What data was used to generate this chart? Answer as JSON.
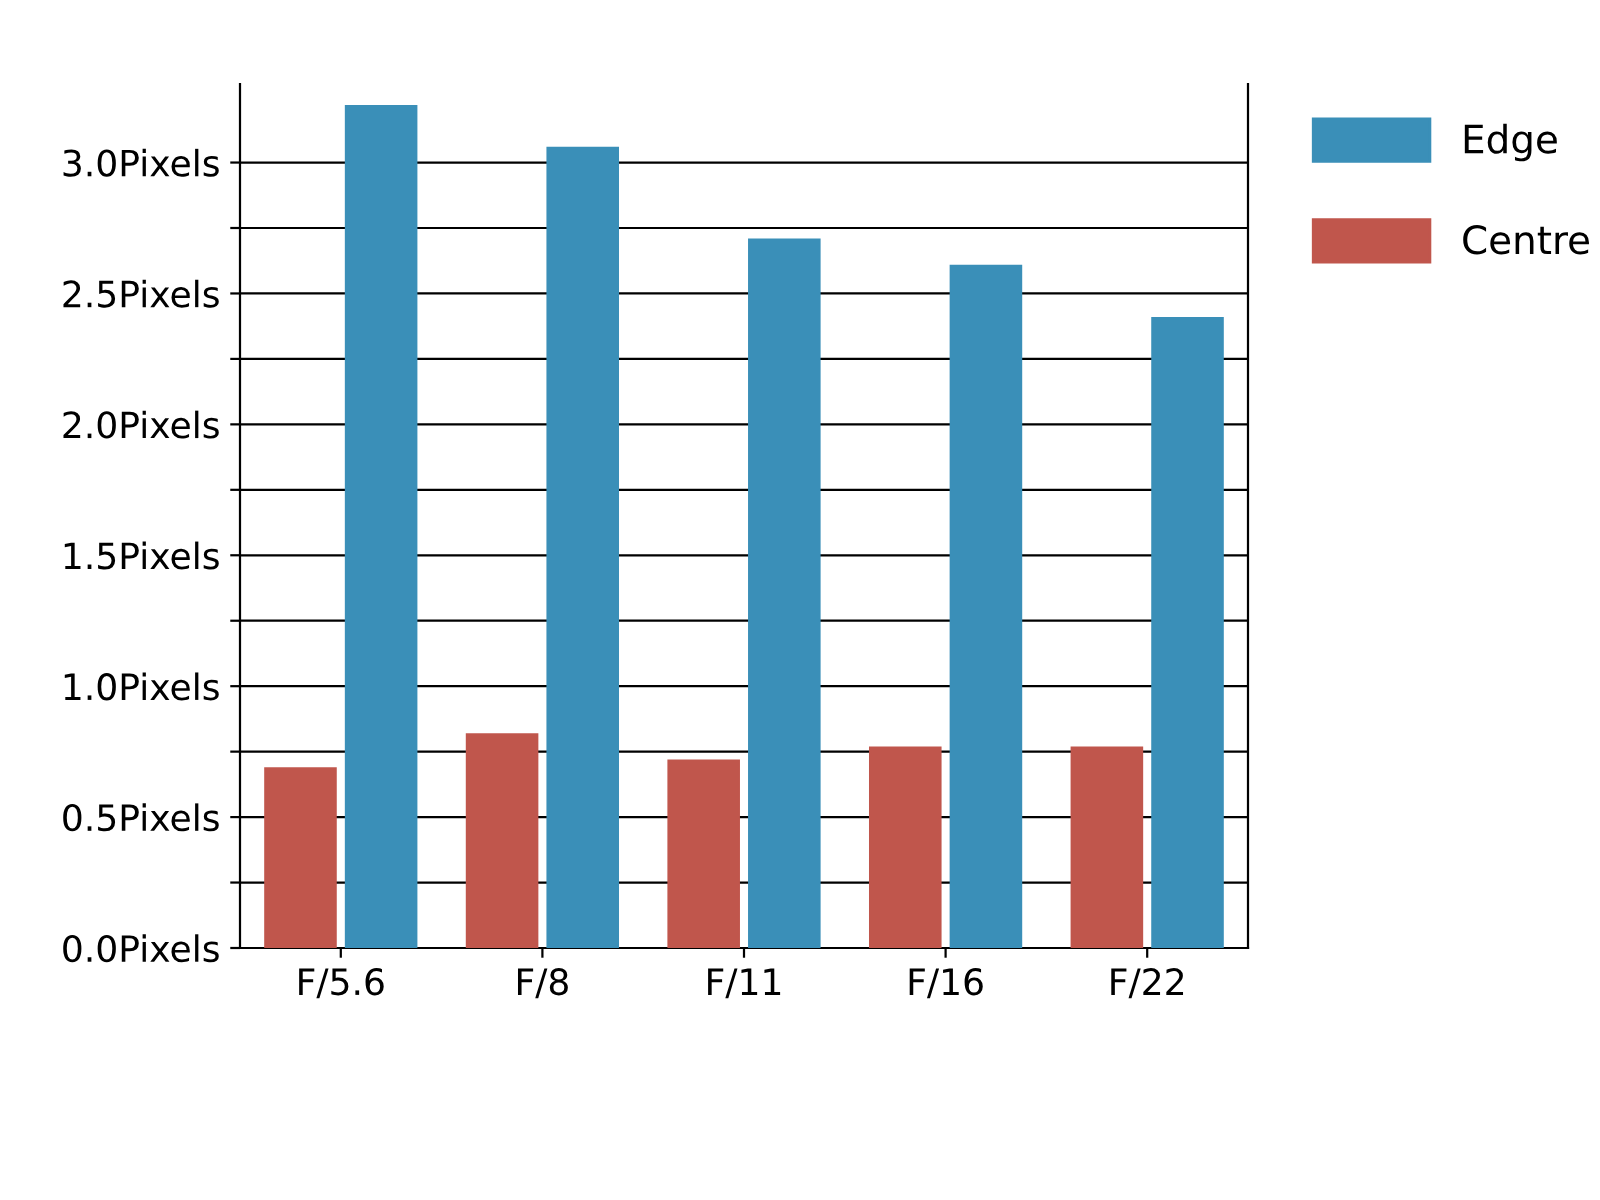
{
  "chart_data": {
    "type": "bar",
    "categories": [
      "F/5.6",
      "F/8",
      "F/11",
      "F/16",
      "F/22"
    ],
    "series": [
      {
        "name": "Centre",
        "color": "#c0564c",
        "values": [
          0.69,
          0.82,
          0.72,
          0.77,
          0.77
        ]
      },
      {
        "name": "Edge",
        "color": "#3a8fb8",
        "values": [
          3.22,
          3.06,
          2.71,
          2.61,
          2.41
        ]
      }
    ],
    "ylim": [
      0,
      3.3
    ],
    "yticks": [
      {
        "value": 0,
        "label": "0.0Pixels"
      },
      {
        "value": 0.25,
        "label": null
      },
      {
        "value": 0.5,
        "label": "0.5Pixels"
      },
      {
        "value": 0.75,
        "label": null
      },
      {
        "value": 1.0,
        "label": "1.0Pixels"
      },
      {
        "value": 1.25,
        "label": null
      },
      {
        "value": 1.5,
        "label": "1.5Pixels"
      },
      {
        "value": 1.75,
        "label": null
      },
      {
        "value": 2.0,
        "label": "2.0Pixels"
      },
      {
        "value": 2.25,
        "label": null
      },
      {
        "value": 2.5,
        "label": "2.5Pixels"
      },
      {
        "value": 2.75,
        "label": null
      },
      {
        "value": 3.0,
        "label": "3.0Pixels"
      }
    ],
    "grid": "y",
    "legend": "right"
  }
}
